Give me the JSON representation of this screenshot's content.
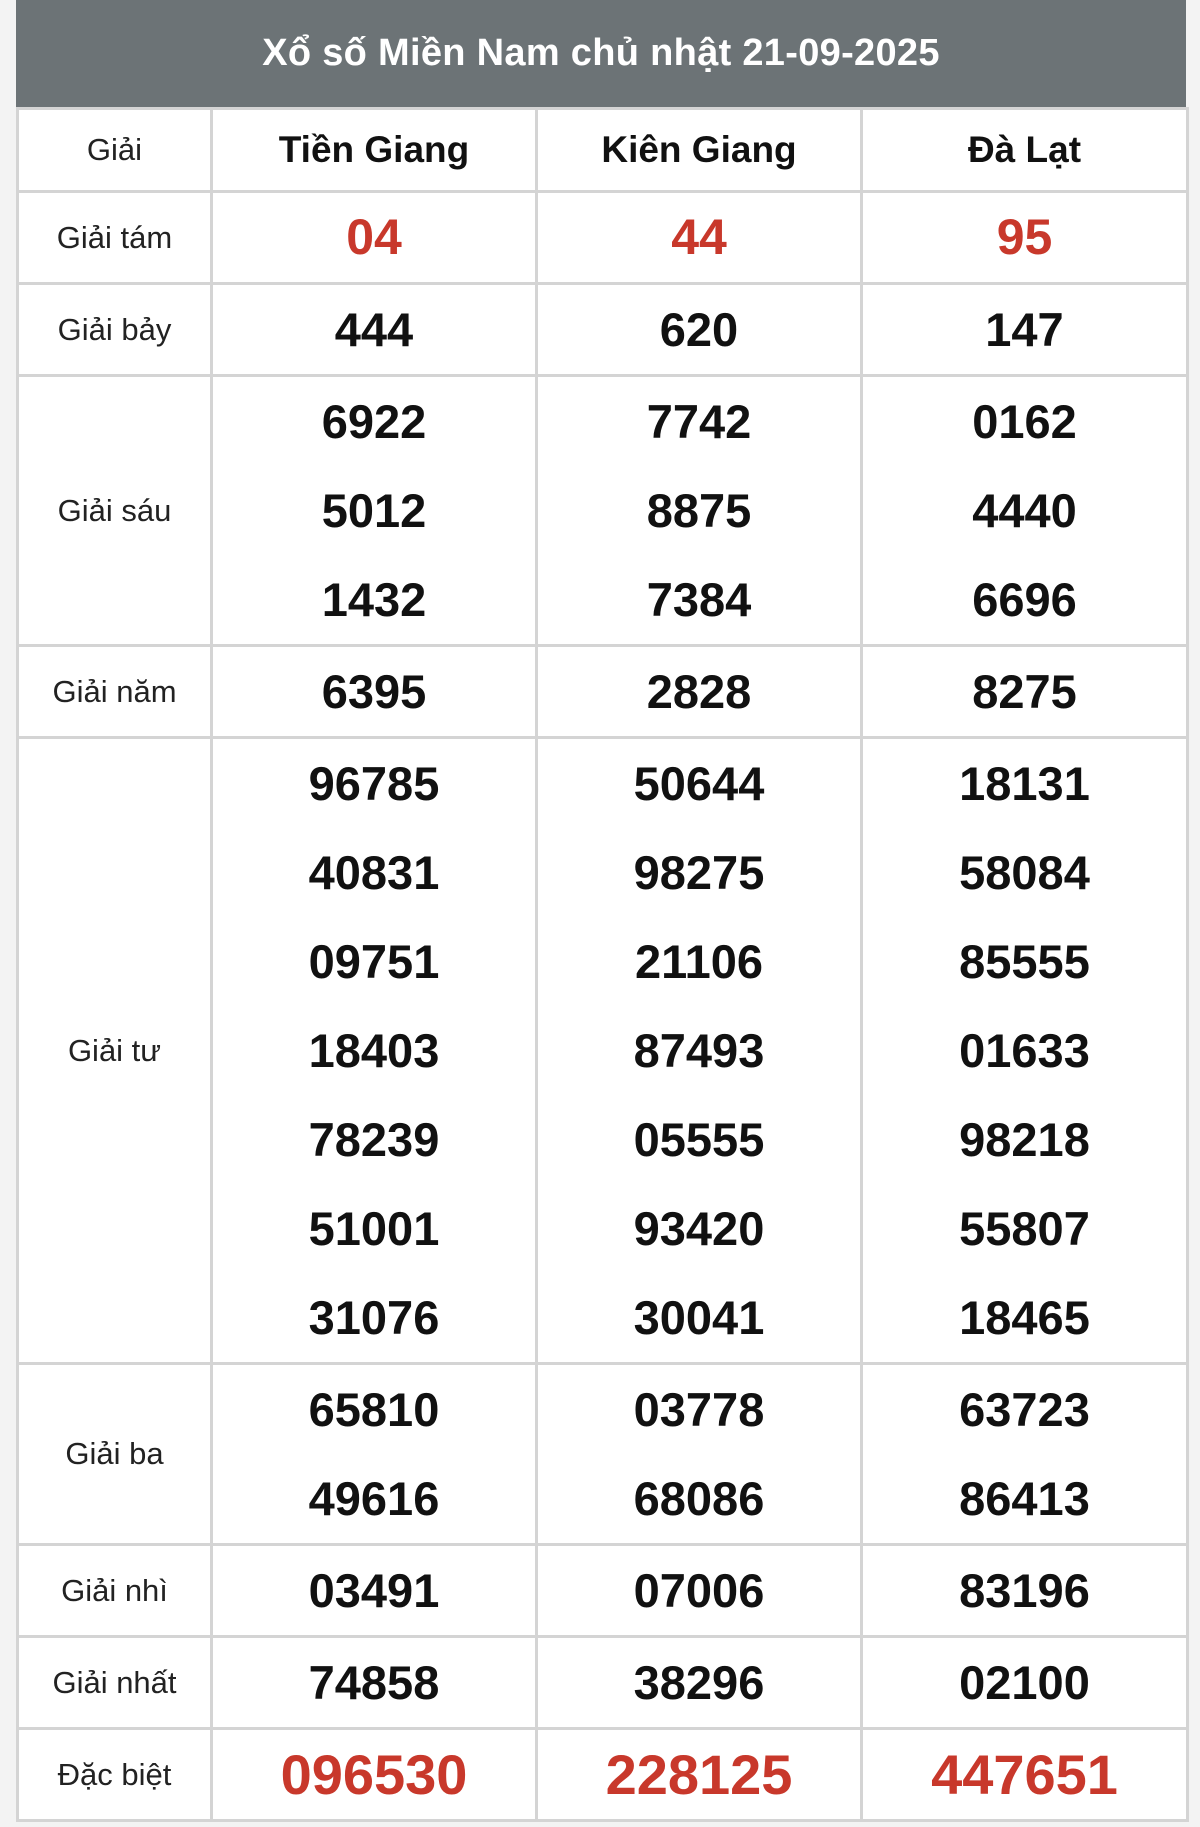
{
  "title": "Xổ số Miền Nam chủ nhật 21-09-2025",
  "header": {
    "prize_label": "Giải",
    "provinces": [
      "Tiền Giang",
      "Kiên Giang",
      "Đà Lạt"
    ]
  },
  "colors": {
    "header_bg": "#6c7376",
    "highlight": "#c8382b"
  },
  "rows": [
    {
      "label": "Giải tám",
      "style": "red",
      "values": [
        [
          "04"
        ],
        [
          "44"
        ],
        [
          "95"
        ]
      ]
    },
    {
      "label": "Giải bảy",
      "style": "normal",
      "values": [
        [
          "444"
        ],
        [
          "620"
        ],
        [
          "147"
        ]
      ]
    },
    {
      "label": "Giải sáu",
      "style": "normal",
      "values": [
        [
          "6922",
          "5012",
          "1432"
        ],
        [
          "7742",
          "8875",
          "7384"
        ],
        [
          "0162",
          "4440",
          "6696"
        ]
      ]
    },
    {
      "label": "Giải năm",
      "style": "normal",
      "values": [
        [
          "6395"
        ],
        [
          "2828"
        ],
        [
          "8275"
        ]
      ]
    },
    {
      "label": "Giải tư",
      "style": "normal",
      "values": [
        [
          "96785",
          "40831",
          "09751",
          "18403",
          "78239",
          "51001",
          "31076"
        ],
        [
          "50644",
          "98275",
          "21106",
          "87493",
          "05555",
          "93420",
          "30041"
        ],
        [
          "18131",
          "58084",
          "85555",
          "01633",
          "98218",
          "55807",
          "18465"
        ]
      ]
    },
    {
      "label": "Giải ba",
      "style": "normal",
      "values": [
        [
          "65810",
          "49616"
        ],
        [
          "03778",
          "68086"
        ],
        [
          "63723",
          "86413"
        ]
      ]
    },
    {
      "label": "Giải nhì",
      "style": "normal",
      "values": [
        [
          "03491"
        ],
        [
          "07006"
        ],
        [
          "83196"
        ]
      ]
    },
    {
      "label": "Giải nhất",
      "style": "normal",
      "values": [
        [
          "74858"
        ],
        [
          "38296"
        ],
        [
          "02100"
        ]
      ]
    },
    {
      "label": "Đặc biệt",
      "style": "big",
      "values": [
        [
          "096530"
        ],
        [
          "228125"
        ],
        [
          "447651"
        ]
      ]
    }
  ]
}
